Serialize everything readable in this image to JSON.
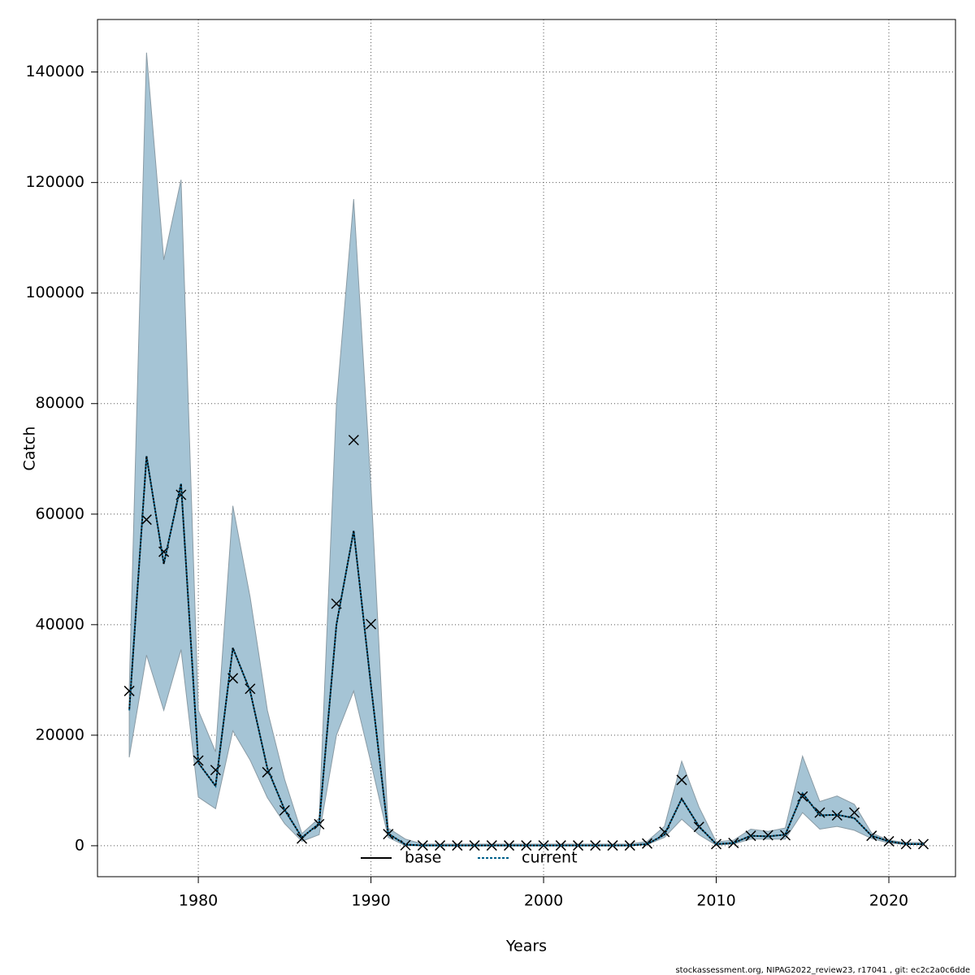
{
  "chart_data": {
    "type": "line",
    "xlabel": "Years",
    "ylabel": "Catch",
    "footnote": "stockassessment.org, NIPAG2022_review23, r17041 , git: ec2c2a0c6dde",
    "x": [
      1976,
      1977,
      1978,
      1979,
      1980,
      1981,
      1982,
      1983,
      1984,
      1985,
      1986,
      1987,
      1988,
      1989,
      1990,
      1991,
      1992,
      1993,
      1994,
      1995,
      1996,
      1997,
      1998,
      1999,
      2000,
      2001,
      2002,
      2003,
      2004,
      2005,
      2006,
      2007,
      2008,
      2009,
      2010,
      2011,
      2012,
      2013,
      2014,
      2015,
      2016,
      2017,
      2018,
      2019,
      2020,
      2021,
      2022
    ],
    "series": [
      {
        "name": "base",
        "color": "#000000",
        "marker": "x",
        "values": [
          28000,
          59000,
          53200,
          63500,
          15400,
          13700,
          30300,
          28400,
          13300,
          6400,
          1300,
          3900,
          43800,
          73400,
          40100,
          2100,
          100,
          50,
          50,
          50,
          50,
          50,
          50,
          50,
          50,
          50,
          50,
          50,
          50,
          50,
          400,
          2500,
          11900,
          3400,
          300,
          500,
          1800,
          1900,
          1900,
          8900,
          6000,
          5500,
          6000,
          1800,
          800,
          300,
          300
        ]
      },
      {
        "name": "current",
        "color": "#00608a",
        "linestyle": "dotted",
        "values": [
          24500,
          70500,
          51000,
          65500,
          15000,
          10800,
          35800,
          28000,
          14000,
          6500,
          1500,
          4000,
          40000,
          57000,
          29000,
          2200,
          200,
          50,
          50,
          50,
          50,
          50,
          50,
          50,
          50,
          50,
          50,
          50,
          50,
          50,
          300,
          2000,
          8500,
          3500,
          300,
          500,
          1800,
          1700,
          2000,
          9500,
          5500,
          5600,
          5000,
          1800,
          800,
          300,
          300
        ]
      }
    ],
    "band": {
      "color": "#a5c4d5",
      "upper": [
        28500,
        143500,
        106000,
        120500,
        24500,
        17000,
        61500,
        45000,
        24500,
        12000,
        2200,
        5000,
        80000,
        117000,
        65000,
        3200,
        1200,
        300,
        300,
        300,
        300,
        300,
        300,
        300,
        300,
        300,
        300,
        300,
        300,
        300,
        800,
        3500,
        15300,
        7000,
        700,
        1000,
        3000,
        2600,
        3200,
        16200,
        8000,
        9000,
        7500,
        2300,
        1000,
        600,
        600
      ],
      "lower": [
        16000,
        34500,
        24500,
        35500,
        8800,
        6700,
        20800,
        15500,
        8700,
        4000,
        800,
        2000,
        20000,
        28000,
        15000,
        1500,
        0,
        0,
        0,
        0,
        0,
        0,
        0,
        0,
        0,
        0,
        0,
        0,
        0,
        0,
        200,
        1500,
        4800,
        2000,
        100,
        300,
        1200,
        1200,
        1200,
        6000,
        3000,
        3500,
        2800,
        1300,
        500,
        200,
        200
      ]
    },
    "xlim": [
      1974.16,
      2023.86
    ],
    "ylim": [
      -5600,
      149500
    ],
    "xticks": [
      1980,
      1990,
      2000,
      2010,
      2020
    ],
    "yticks": [
      0,
      20000,
      40000,
      60000,
      80000,
      100000,
      120000,
      140000
    ],
    "grid": true,
    "legend": "bottom"
  }
}
